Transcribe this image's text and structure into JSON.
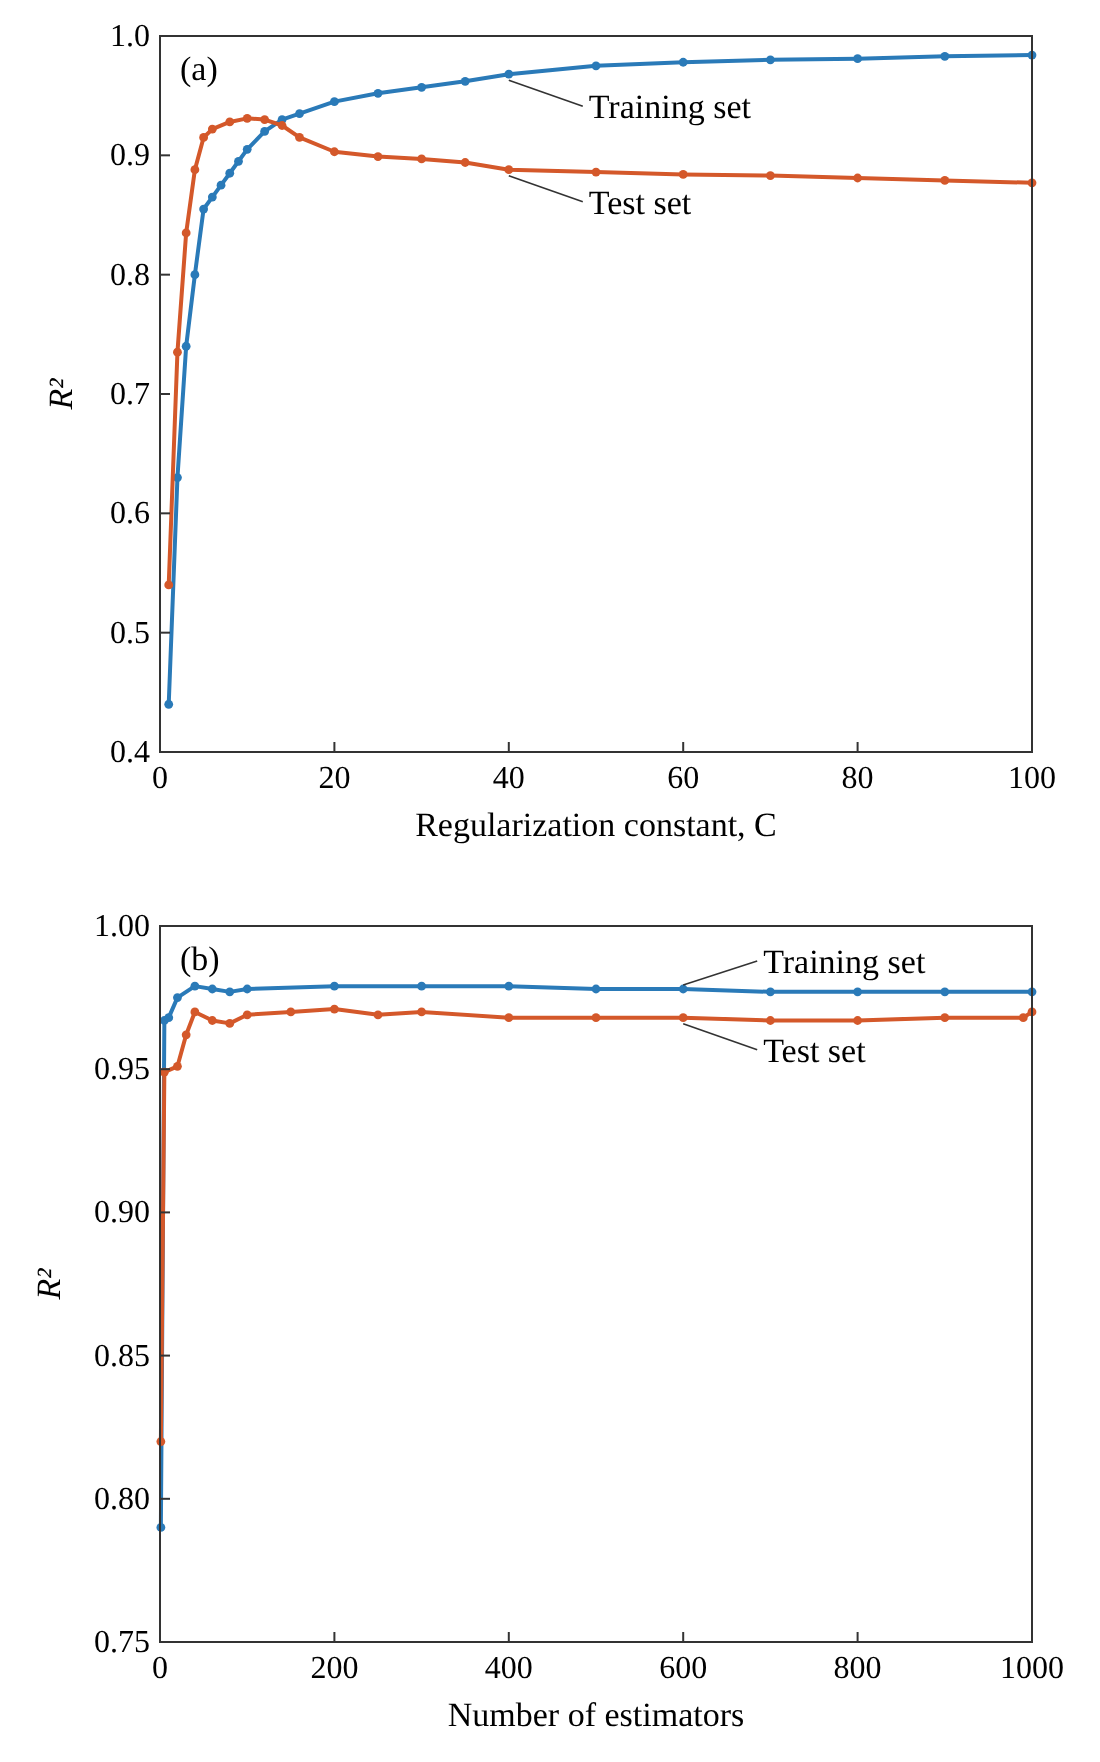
{
  "chart_data": [
    {
      "type": "line",
      "xlabel": "Regularization constant, C",
      "ylabel": "R²",
      "annotations": [
        "(a)"
      ],
      "xlim": [
        0,
        100
      ],
      "xticks": [
        0,
        20,
        40,
        60,
        80,
        100
      ],
      "ylim": [
        0.4,
        1.0
      ],
      "yticks": [
        {
          "value": 0.4,
          "label": "0.4"
        },
        {
          "value": 0.5,
          "label": "0.5"
        },
        {
          "value": 0.6,
          "label": "0.6"
        },
        {
          "value": 0.7,
          "label": "0.7"
        },
        {
          "value": 0.8,
          "label": "0.8"
        },
        {
          "value": 0.9,
          "label": "0.9"
        },
        {
          "value": 1.0,
          "label": "1.0"
        }
      ],
      "grid": false,
      "marker": "circle",
      "line_style": "solid",
      "series": [
        {
          "name": "Training set",
          "color": "#2a7ab8",
          "x": [
            1,
            2,
            3,
            4,
            5,
            6,
            7,
            8,
            9,
            10,
            12,
            14,
            16,
            20,
            25,
            30,
            35,
            40,
            50,
            60,
            70,
            80,
            90,
            100
          ],
          "values": [
            0.44,
            0.63,
            0.74,
            0.8,
            0.855,
            0.865,
            0.875,
            0.885,
            0.895,
            0.905,
            0.92,
            0.93,
            0.935,
            0.945,
            0.952,
            0.957,
            0.962,
            0.968,
            0.975,
            0.978,
            0.98,
            0.981,
            0.983,
            0.984
          ]
        },
        {
          "name": "Test set",
          "color": "#d4582a",
          "x": [
            1,
            2,
            3,
            4,
            5,
            6,
            8,
            10,
            12,
            14,
            16,
            20,
            25,
            30,
            35,
            40,
            50,
            60,
            70,
            80,
            90,
            100
          ],
          "values": [
            0.54,
            0.735,
            0.835,
            0.888,
            0.915,
            0.922,
            0.928,
            0.931,
            0.93,
            0.925,
            0.915,
            0.903,
            0.899,
            0.897,
            0.894,
            0.888,
            0.886,
            0.884,
            0.883,
            0.881,
            0.879,
            0.877
          ]
        }
      ]
    },
    {
      "type": "line",
      "xlabel": "Number of estimators",
      "ylabel": "R²",
      "annotations": [
        "(b)"
      ],
      "xlim": [
        0,
        1000
      ],
      "xticks": [
        0,
        200,
        400,
        600,
        800,
        1000
      ],
      "ylim": [
        0.75,
        1.0
      ],
      "yticks": [
        {
          "value": 0.75,
          "label": "0.75"
        },
        {
          "value": 0.8,
          "label": "0.80"
        },
        {
          "value": 0.85,
          "label": "0.85"
        },
        {
          "value": 0.9,
          "label": "0.90"
        },
        {
          "value": 0.95,
          "label": "0.95"
        },
        {
          "value": 1.0,
          "label": "1.00"
        }
      ],
      "grid": false,
      "marker": "circle",
      "line_style": "solid",
      "series": [
        {
          "name": "Training set",
          "color": "#2a7ab8",
          "x": [
            1,
            5,
            10,
            20,
            40,
            60,
            80,
            100,
            200,
            300,
            400,
            500,
            600,
            700,
            800,
            900,
            1000
          ],
          "values": [
            0.79,
            0.967,
            0.968,
            0.975,
            0.979,
            0.978,
            0.977,
            0.978,
            0.979,
            0.979,
            0.979,
            0.978,
            0.978,
            0.977,
            0.977,
            0.977,
            0.977
          ]
        },
        {
          "name": "Test set",
          "color": "#d4582a",
          "x": [
            1,
            5,
            20,
            30,
            40,
            60,
            80,
            100,
            150,
            200,
            250,
            300,
            400,
            500,
            600,
            700,
            800,
            900,
            990,
            1000
          ],
          "values": [
            0.82,
            0.949,
            0.951,
            0.962,
            0.97,
            0.967,
            0.966,
            0.969,
            0.97,
            0.971,
            0.969,
            0.97,
            0.968,
            0.968,
            0.968,
            0.967,
            0.967,
            0.968,
            0.968,
            0.97
          ]
        }
      ]
    }
  ]
}
